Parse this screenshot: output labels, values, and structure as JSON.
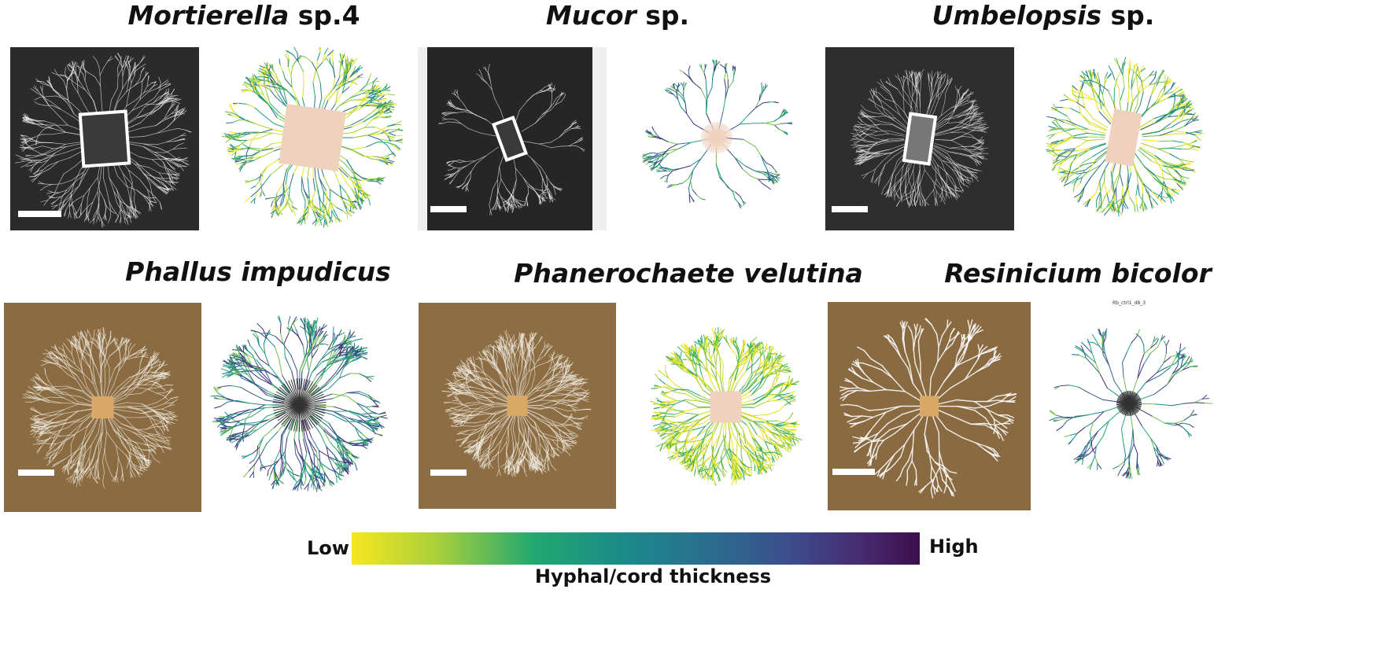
{
  "panels": [
    {
      "genus": "Mortierella",
      "suffix": " sp.4",
      "italic_all": false,
      "photo_style": "dark",
      "inoculum": "rect_tilted",
      "net_density": "dense",
      "net_center": "peach"
    },
    {
      "genus": "Mucor",
      "suffix": " sp.",
      "italic_all": false,
      "photo_style": "dark",
      "inoculum": "rect_tilted_small",
      "net_density": "sparse",
      "net_center": "peach_lines"
    },
    {
      "genus": "Umbelopsis",
      "suffix": " sp.",
      "italic_all": false,
      "photo_style": "dark",
      "inoculum": "rect_upright",
      "net_density": "dense",
      "net_center": "peach"
    },
    {
      "genus": "Phallus impudicus",
      "suffix": "",
      "italic_all": true,
      "photo_style": "brown",
      "inoculum": "wood_block",
      "net_density": "medium",
      "net_center": "dark_star"
    },
    {
      "genus": "Phanerochaete velutina",
      "suffix": "",
      "italic_all": true,
      "photo_style": "brown",
      "inoculum": "wood_block",
      "net_density": "dense",
      "net_center": "peach"
    },
    {
      "genus": "Resinicium bicolor",
      "suffix": "",
      "italic_all": true,
      "photo_style": "brown",
      "inoculum": "wood_block",
      "net_density": "sparse",
      "net_center": "dark_star"
    }
  ],
  "tiny_label": "Rb_ctrl1_d8_3",
  "colorbar": {
    "low_label": "Low",
    "high_label": "High",
    "title": "Hyphal/cord thickness",
    "colors": [
      "#f4e51d",
      "#9ccb3a",
      "#22a87a",
      "#1b8a8c",
      "#2f6a8e",
      "#3d4a8a",
      "#472a78",
      "#3e0f4d"
    ]
  },
  "colors": {
    "dark_photo_bg": "#2a2a2a",
    "brown_photo_bg": "#8b6e44",
    "peach": "#efd1bd",
    "wood": "#d9a866"
  }
}
